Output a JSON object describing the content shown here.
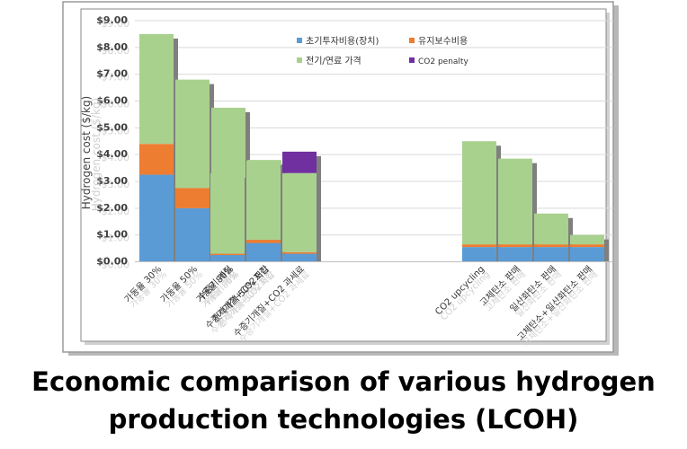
{
  "caption": {
    "line1": "Economic comparison of various hydrogen",
    "line2": "production technologies (LCOH)"
  },
  "chart_data": {
    "type": "bar",
    "stacked": true,
    "ylabel": "Hydrogen cost ($/kg)",
    "ylim": [
      0,
      9
    ],
    "yticks": [
      "$0.00",
      "$1.00",
      "$2.00",
      "$3.00",
      "$4.00",
      "$5.00",
      "$6.00",
      "$7.00",
      "$8.00",
      "$9.00"
    ],
    "grid": true,
    "legend_position": "top-right",
    "groups": [
      {
        "categories": [
          "가동율 30%",
          "가동율 50%",
          "가동율 80%",
          "전력가격 50% 저감"
        ]
      },
      {
        "categories": [
          "수증기 개질",
          "수증기개질+CO2포집",
          "수증기개질+CO2 과세료"
        ]
      },
      {
        "categories": [
          "CO2 upcycling",
          "고체탄소 판매",
          "일산화탄소 판매",
          "고체탄소+일산화탄소 판매"
        ]
      }
    ],
    "categories": [
      "가동율 30%",
      "가동율 50%",
      "가동율 80%",
      "전력가격 50% 저감",
      "수증기 개질",
      "수증기개질+CO2포집",
      "수증기개질+CO2 과세료",
      "CO2 upcycling",
      "고체탄소 판매",
      "일산화탄소 판매",
      "고체탄소+일산화탄소 판매"
    ],
    "series": [
      {
        "name": "초기투자비용(장치)",
        "color": "#5b9bd5",
        "values": [
          3.25,
          2.0,
          1.2,
          1.2,
          0.25,
          0.7,
          0.3,
          0.55,
          0.55,
          0.55,
          0.55
        ]
      },
      {
        "name": "유지보수비용",
        "color": "#ed7d31",
        "values": [
          1.15,
          0.75,
          0.45,
          0.45,
          0.05,
          0.12,
          0.06,
          0.1,
          0.1,
          0.1,
          0.1
        ]
      },
      {
        "name": "전기/연료 가격",
        "color": "#a9d18e",
        "values": [
          4.1,
          4.05,
          4.1,
          2.15,
          3.0,
          2.95,
          2.95,
          3.85,
          3.2,
          1.15,
          0.35
        ]
      },
      {
        "name": "CO2 penalty",
        "color": "#7030a0",
        "values": [
          0,
          0,
          0,
          0,
          0,
          0,
          0.8,
          0,
          0,
          0,
          0
        ]
      }
    ]
  }
}
